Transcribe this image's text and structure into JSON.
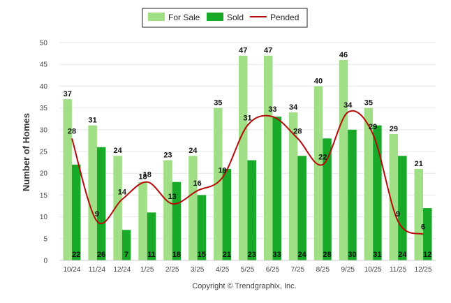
{
  "chart_data": {
    "type": "bar",
    "categories": [
      "10/24",
      "11/24",
      "12/24",
      "1/25",
      "2/25",
      "3/25",
      "4/25",
      "5/25",
      "6/25",
      "7/25",
      "8/25",
      "9/25",
      "10/25",
      "11/25",
      "12/25"
    ],
    "series": [
      {
        "name": "For Sale",
        "type": "bar",
        "color": "#a0df86",
        "values": [
          37,
          31,
          24,
          18,
          23,
          24,
          35,
          47,
          47,
          34,
          40,
          46,
          35,
          29,
          21
        ]
      },
      {
        "name": "Sold",
        "type": "bar",
        "color": "#18a928",
        "values": [
          22,
          26,
          7,
          11,
          18,
          15,
          21,
          23,
          33,
          24,
          28,
          30,
          31,
          24,
          12
        ]
      },
      {
        "name": "Pended",
        "type": "line",
        "color": "#b50b0b",
        "values": [
          28,
          9,
          14,
          18,
          13,
          16,
          19,
          31,
          33,
          28,
          22,
          34,
          29,
          9,
          6
        ]
      }
    ],
    "ylabel": "Number of Homes",
    "xlabel": "",
    "ylim": [
      0,
      50
    ],
    "yticks": [
      0,
      5,
      10,
      15,
      20,
      25,
      30,
      35,
      40,
      45,
      50
    ],
    "grid": true,
    "legend": "top-center",
    "footer": "Copyright © Trendgraphix, Inc."
  }
}
